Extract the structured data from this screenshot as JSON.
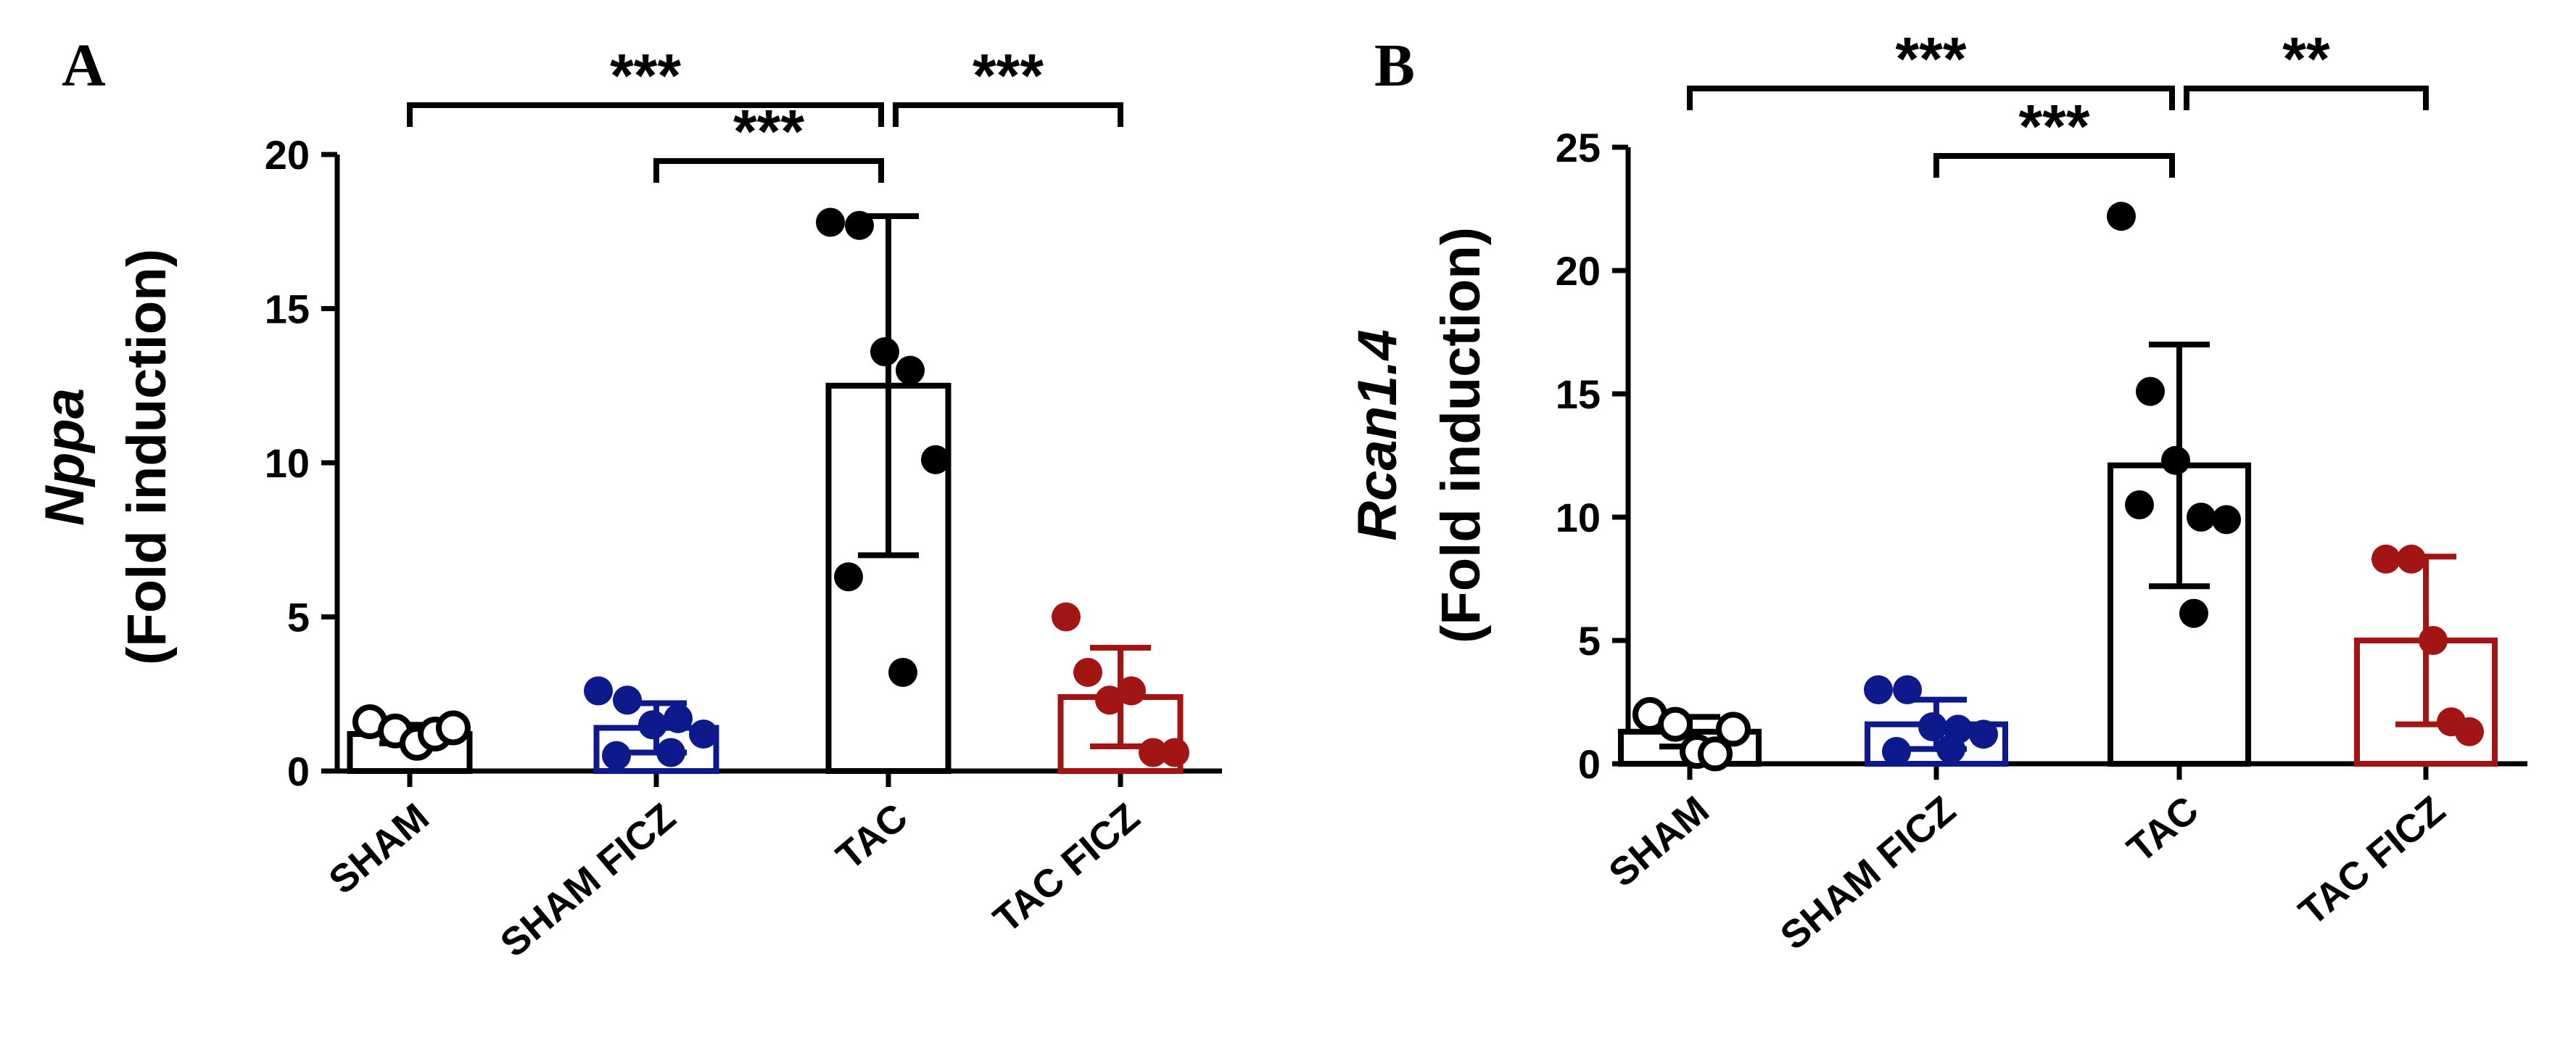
{
  "chart_data": [
    {
      "panel": "A",
      "type": "bar",
      "ylabel_italic": "Nppa",
      "ylabel": "(Fold induction)",
      "ylim": [
        0,
        20
      ],
      "yticks": [
        0,
        5,
        10,
        15,
        20
      ],
      "categories": [
        "SHAM",
        "SHAM FICZ",
        "TAC",
        "TAC FICZ"
      ],
      "colors": [
        "#000000",
        "#0d1a8c",
        "#000000",
        "#a31515"
      ],
      "fills": [
        "open",
        "filled",
        "filled",
        "filled"
      ],
      "means": [
        1.2,
        1.4,
        12.5,
        2.4
      ],
      "sd": [
        0.3,
        0.8,
        5.5,
        1.6
      ],
      "points": [
        [
          1.6,
          1.3,
          0.9,
          1.2,
          1.4
        ],
        [
          2.6,
          2.3,
          1.5,
          1.7,
          1.2,
          0.5,
          0.6
        ],
        [
          17.8,
          17.7,
          13.6,
          13.0,
          10.1,
          6.3,
          3.2
        ],
        [
          5.0,
          3.2,
          2.3,
          2.6,
          0.6,
          0.6
        ]
      ],
      "significance": [
        {
          "from": 0,
          "to": 2,
          "label": "***"
        },
        {
          "from": 1,
          "to": 2,
          "label": "***"
        },
        {
          "from": 2,
          "to": 3,
          "label": "***"
        }
      ]
    },
    {
      "panel": "B",
      "type": "bar",
      "ylabel_italic": "Rcan1.4",
      "ylabel": "(Fold induction)",
      "ylim": [
        0,
        25
      ],
      "yticks": [
        0,
        5,
        10,
        15,
        20,
        25
      ],
      "categories": [
        "SHAM",
        "SHAM FICZ",
        "TAC",
        "TAC FICZ"
      ],
      "colors": [
        "#000000",
        "#0d1a8c",
        "#000000",
        "#a31515"
      ],
      "fills": [
        "open",
        "filled",
        "filled",
        "filled"
      ],
      "means": [
        1.3,
        1.6,
        12.1,
        5.0
      ],
      "sd": [
        0.6,
        1.0,
        4.9,
        3.4
      ],
      "points": [
        [
          2.0,
          1.6,
          0.5,
          0.4,
          1.4
        ],
        [
          3.0,
          3.0,
          1.5,
          1.4,
          1.2,
          0.5,
          0.6
        ],
        [
          22.2,
          15.1,
          12.3,
          10.0,
          9.9,
          10.5,
          6.1
        ],
        [
          8.3,
          8.3,
          5.0,
          1.7,
          1.3
        ]
      ],
      "significance": [
        {
          "from": 0,
          "to": 2,
          "label": "***"
        },
        {
          "from": 1,
          "to": 2,
          "label": "***"
        },
        {
          "from": 2,
          "to": 3,
          "label": "**"
        }
      ]
    }
  ]
}
